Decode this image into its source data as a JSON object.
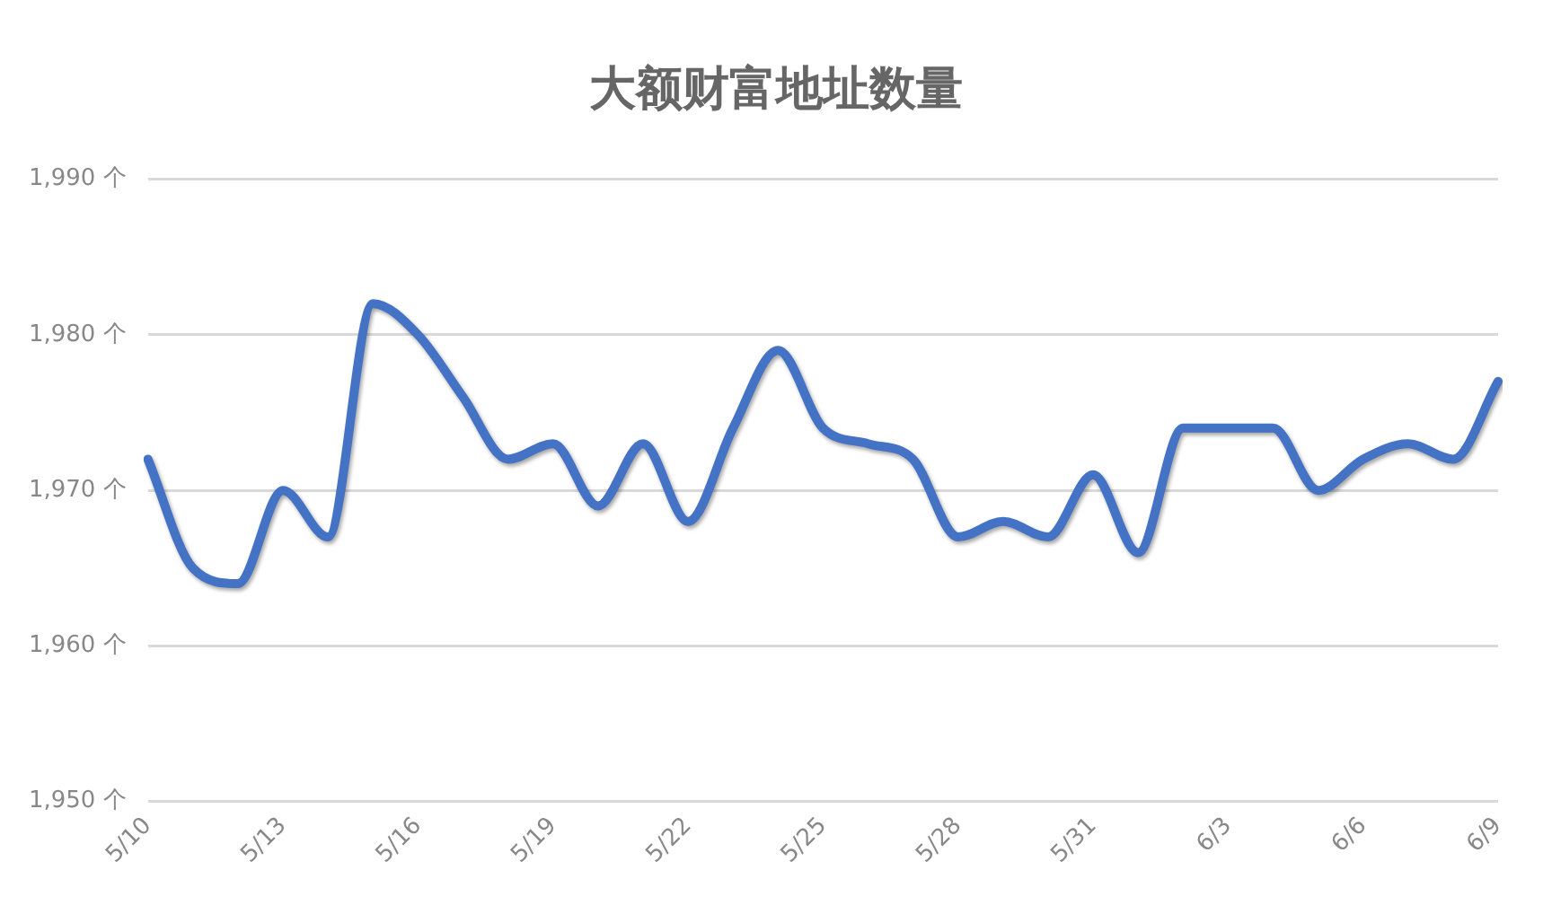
{
  "chart_data": {
    "type": "line",
    "title": "大额财富地址数量",
    "categories": [
      "5/10",
      null,
      null,
      "5/13",
      null,
      null,
      "5/16",
      null,
      null,
      "5/19",
      null,
      null,
      "5/22",
      null,
      null,
      "5/25",
      null,
      null,
      "5/28",
      null,
      null,
      "5/31",
      null,
      null,
      "6/3",
      null,
      null,
      "6/6",
      null,
      null,
      "6/9"
    ],
    "series": [
      {
        "color": "#4472c4",
        "values": [
          1972,
          1965,
          1964,
          1970,
          1967,
          1982,
          1980,
          1976,
          1972,
          1973,
          1969,
          1973,
          1968,
          1974,
          1979,
          1974,
          1973,
          1972,
          1967,
          1968,
          1967,
          1971,
          1966,
          1974,
          1974,
          1974,
          1970,
          1972,
          1973,
          1972,
          1977
        ]
      }
    ],
    "ylim": [
      1950,
      1990
    ],
    "yticks": [
      {
        "value": 1950,
        "label": "1,950 个"
      },
      {
        "value": 1960,
        "label": "1,960 个"
      },
      {
        "value": 1970,
        "label": "1,970 个"
      },
      {
        "value": 1980,
        "label": "1,980 个"
      },
      {
        "value": 1990,
        "label": "1,990 个"
      }
    ],
    "grid": "y",
    "legend": false,
    "marker": "none",
    "line_style": "solid"
  }
}
